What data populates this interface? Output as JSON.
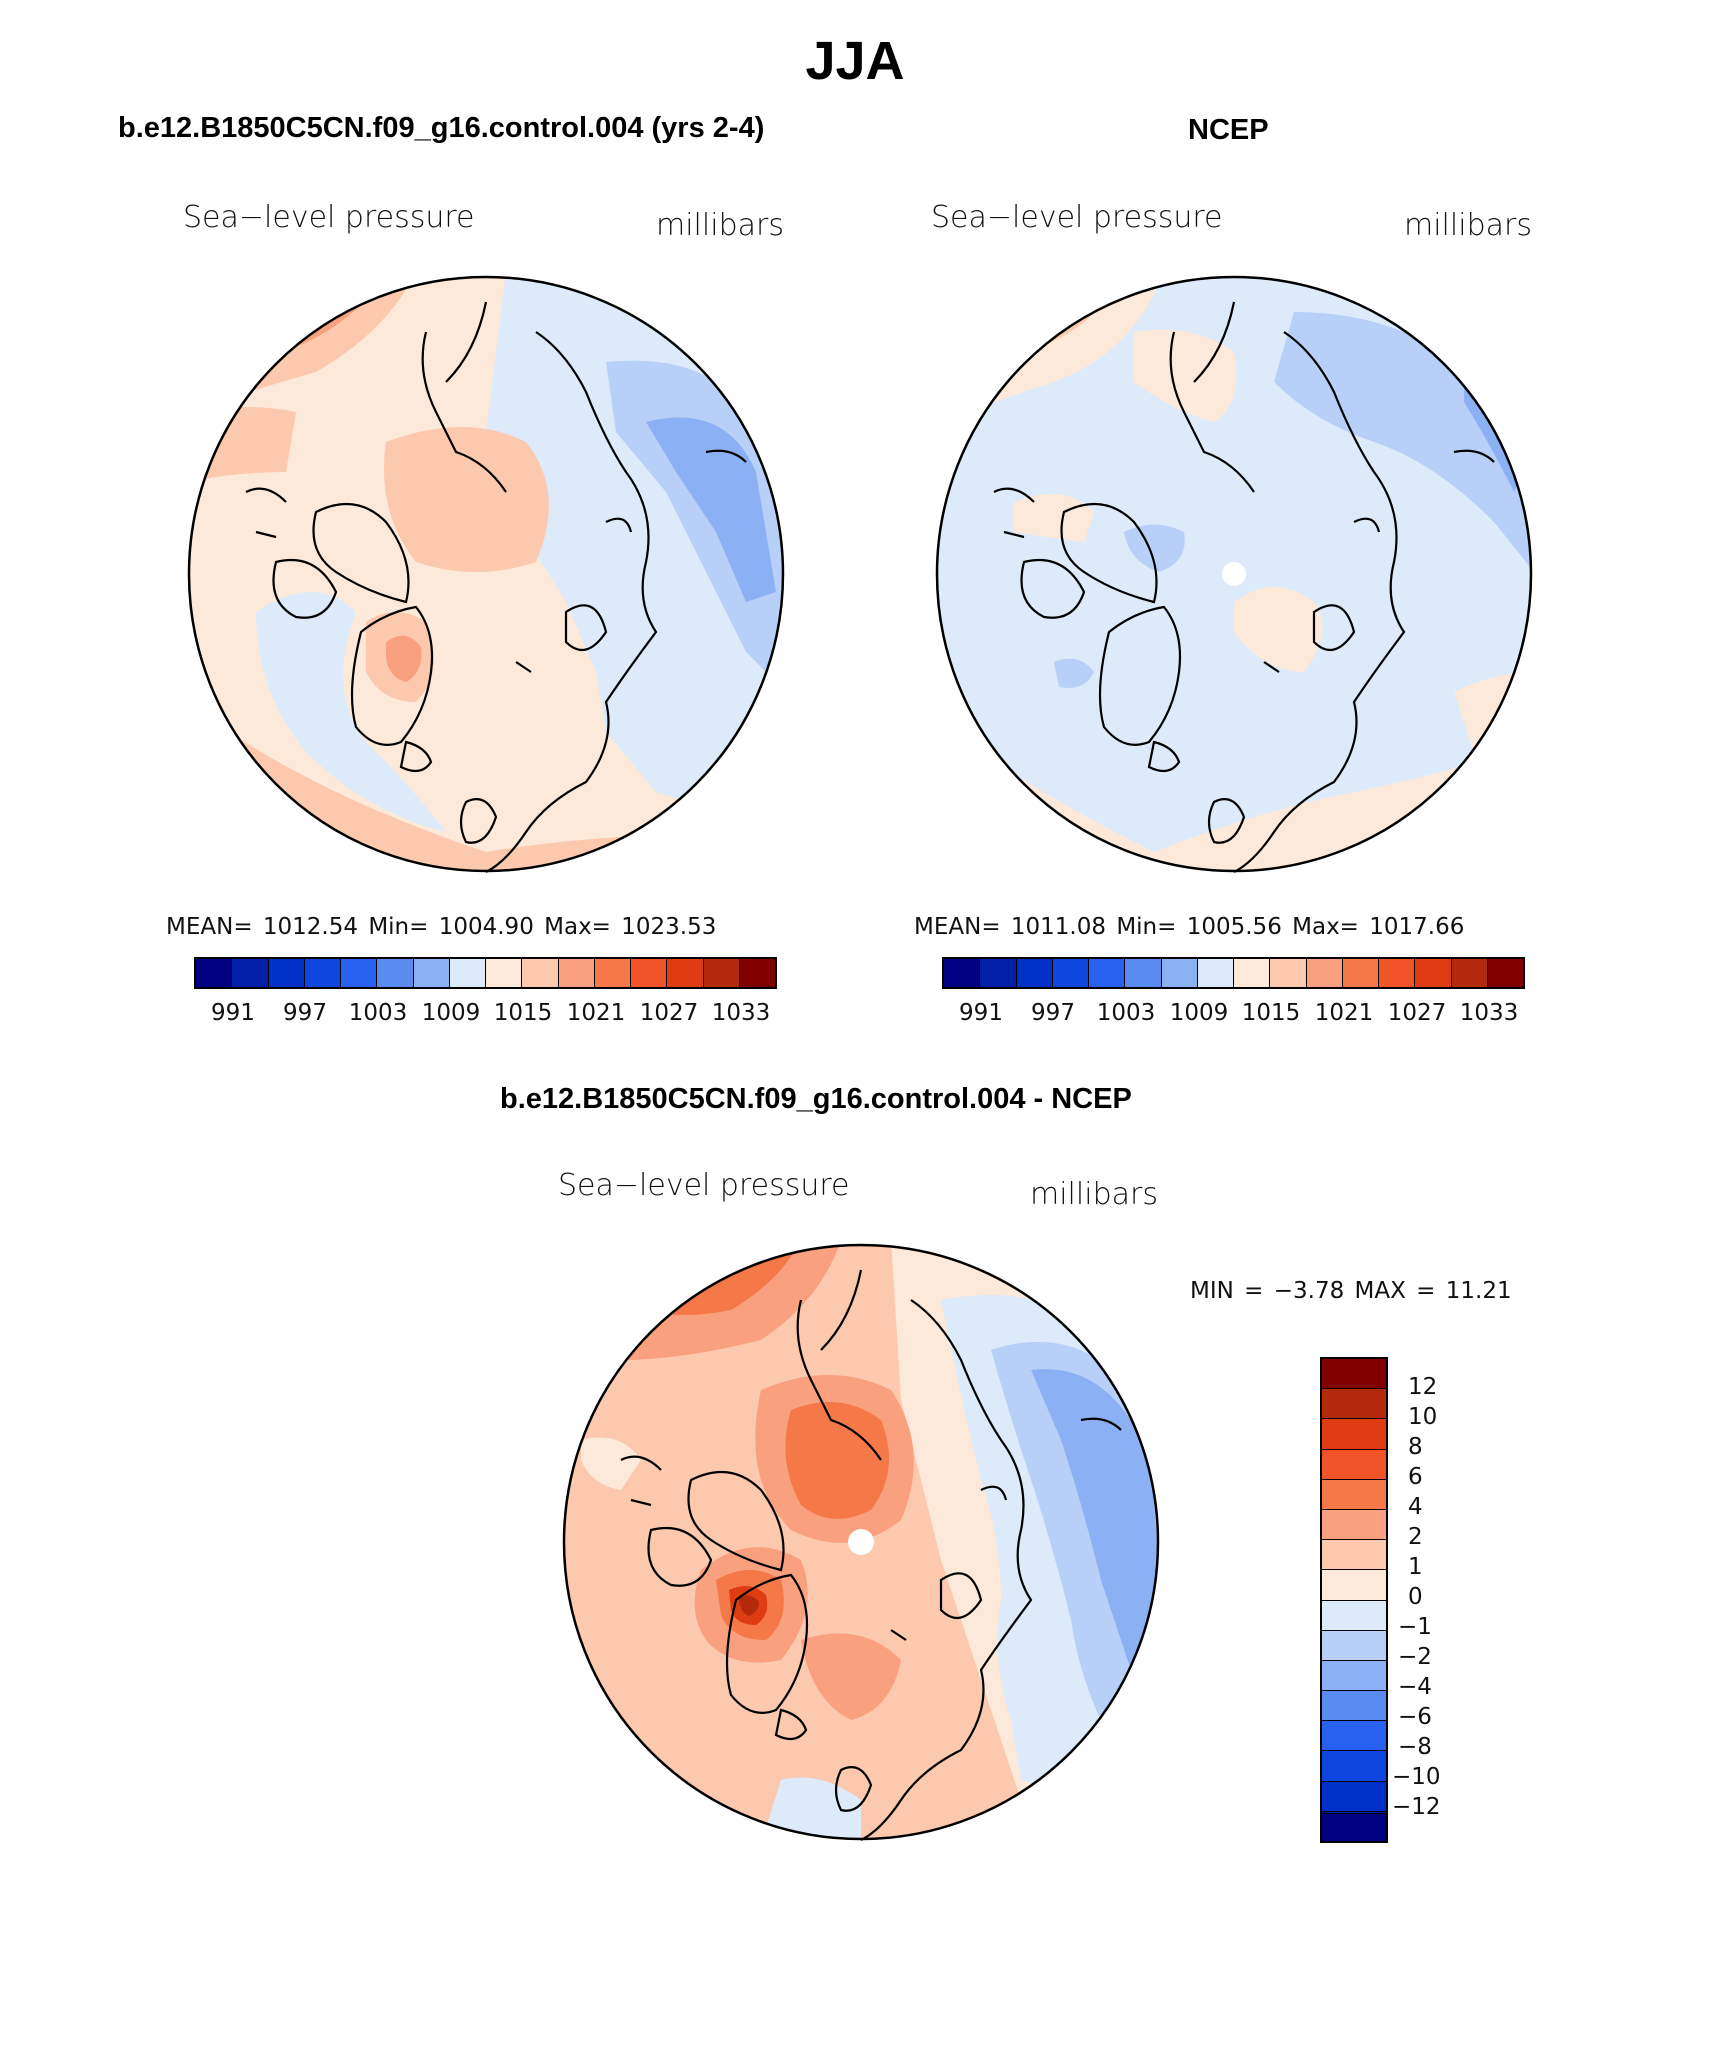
{
  "figure": {
    "title": "JJA"
  },
  "panels": {
    "model": {
      "title": "b.e12.B1850C5CN.f09_g16.control.004 (yrs 2-4)",
      "variable": "Sea−level pressure",
      "units": "millibars",
      "stats": "MEAN= 1012.54   Min= 1004.90   Max= 1023.53",
      "colorbar_ticks": [
        "991",
        "997",
        "1003",
        "1009",
        "1015",
        "1021",
        "1027",
        "1033"
      ]
    },
    "obs": {
      "title": "NCEP",
      "variable": "Sea−level pressure",
      "units": "millibars",
      "stats": "MEAN= 1011.08   Min= 1005.56   Max= 1017.66",
      "colorbar_ticks": [
        "991",
        "997",
        "1003",
        "1009",
        "1015",
        "1021",
        "1027",
        "1033"
      ]
    },
    "diff": {
      "title": "b.e12.B1850C5CN.f09_g16.control.004 - NCEP",
      "variable": "Sea−level pressure",
      "units": "millibars",
      "stats": "MIN =   −3.78  MAX =    11.21",
      "colorbar_ticks": [
        "12",
        "10",
        "8",
        "6",
        "4",
        "2",
        "1",
        "0",
        "−1",
        "−2",
        "−4",
        "−6",
        "−8",
        "−10",
        "−12"
      ]
    }
  },
  "colors": {
    "abs_scale": [
      "#000080",
      "#0020a8",
      "#0030c8",
      "#1046e0",
      "#2860f0",
      "#5a8cf0",
      "#8cb0f4",
      "#b8d0f8",
      "#dceafa",
      "#fde9da",
      "#fcc8ae",
      "#f9a07e",
      "#f47848",
      "#f05428",
      "#e03c14",
      "#b42a0c",
      "#800000"
    ],
    "diff_scale": [
      "#800000",
      "#b42a0c",
      "#e03c14",
      "#f05428",
      "#f47848",
      "#f9a07e",
      "#fcc8ae",
      "#fde9da",
      "#dceafa",
      "#b8d0f8",
      "#8cb0f4",
      "#5a8cf0",
      "#2860f0",
      "#1046e0",
      "#0030c8",
      "#0020a8",
      "#000080"
    ]
  }
}
